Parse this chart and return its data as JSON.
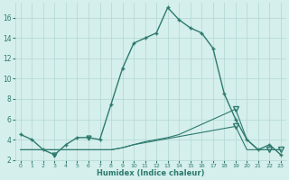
{
  "xlabel": "Humidex (Indice chaleur)",
  "x": [
    0,
    1,
    2,
    3,
    4,
    5,
    6,
    7,
    8,
    9,
    10,
    11,
    12,
    13,
    14,
    15,
    16,
    17,
    18,
    19,
    20,
    21,
    22,
    23
  ],
  "main_y": [
    4.5,
    4.0,
    3.0,
    2.5,
    3.5,
    4.2,
    4.2,
    4.0,
    7.5,
    11.0,
    13.5,
    14.0,
    14.5,
    17.0,
    15.8,
    15.0,
    14.5,
    13.0,
    8.5,
    6.0,
    4.0,
    3.0,
    3.5,
    2.5
  ],
  "line2_y": [
    3.0,
    3.0,
    3.0,
    3.0,
    3.0,
    3.0,
    3.0,
    3.0,
    3.0,
    3.2,
    3.5,
    3.8,
    4.0,
    4.2,
    4.5,
    5.0,
    5.5,
    6.0,
    6.5,
    7.0,
    4.0,
    3.0,
    3.0,
    3.0
  ],
  "line3_y": [
    3.0,
    3.0,
    3.0,
    3.0,
    3.0,
    3.0,
    3.0,
    3.0,
    3.0,
    3.2,
    3.5,
    3.7,
    3.9,
    4.1,
    4.3,
    4.5,
    4.7,
    4.9,
    5.1,
    5.3,
    3.0,
    3.0,
    3.0,
    3.0
  ],
  "ylim": [
    2,
    17.5
  ],
  "xlim": [
    -0.5,
    23.5
  ],
  "yticks": [
    2,
    4,
    6,
    8,
    10,
    12,
    14,
    16
  ],
  "xticks": [
    0,
    1,
    2,
    3,
    4,
    5,
    6,
    7,
    8,
    9,
    10,
    11,
    12,
    13,
    14,
    15,
    16,
    17,
    18,
    19,
    20,
    21,
    22,
    23
  ],
  "color": "#2d7a6e",
  "bg_color": "#d5efec",
  "grid_color": "#b0d8d4"
}
